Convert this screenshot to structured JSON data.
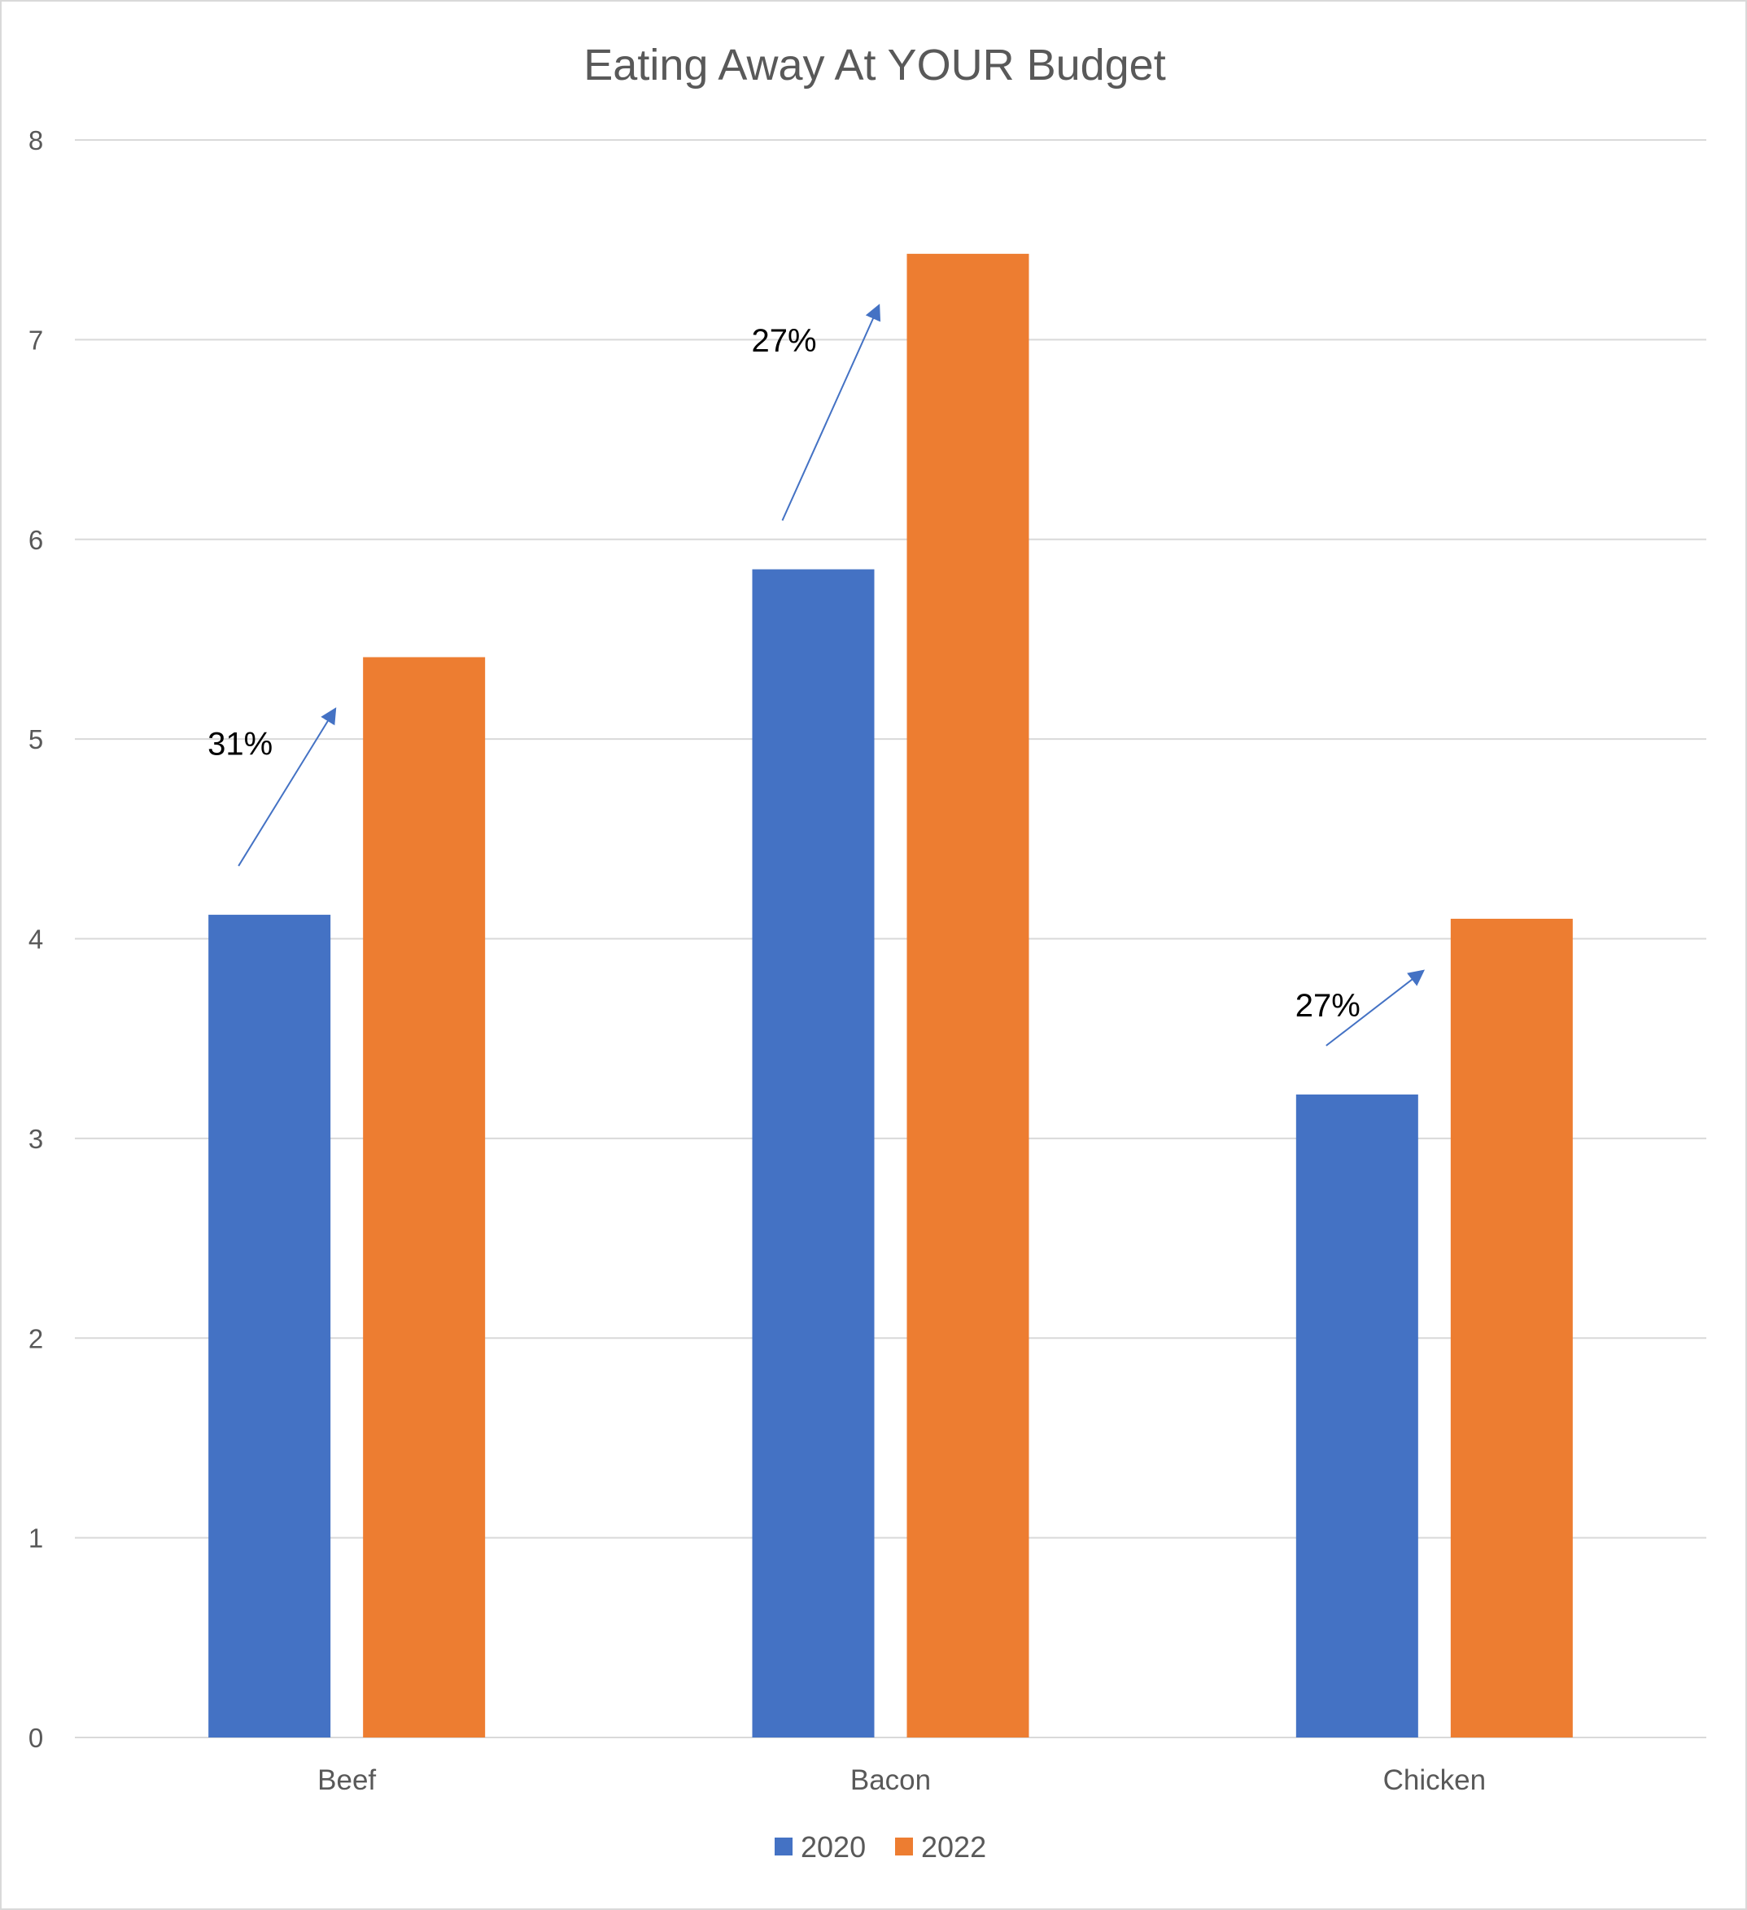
{
  "chart_data": {
    "type": "bar",
    "title": "Eating Away At YOUR Budget",
    "xlabel": "",
    "ylabel": "",
    "categories": [
      "Beef",
      "Bacon",
      "Chicken"
    ],
    "series": [
      {
        "name": "2020",
        "values": [
          4.12,
          5.85,
          3.22
        ],
        "color": "#4472C4"
      },
      {
        "name": "2022",
        "values": [
          5.41,
          7.43,
          4.1
        ],
        "color": "#ED7D31"
      }
    ],
    "ylim": [
      0,
      8
    ],
    "yticks": [
      0,
      1,
      2,
      3,
      4,
      5,
      6,
      7,
      8
    ],
    "grid": true,
    "gridline_color": "#d9d9d9",
    "legend_position": "bottom",
    "annotations": [
      {
        "category": "Beef",
        "text": "31%",
        "arrow_color": "#4472C4"
      },
      {
        "category": "Bacon",
        "text": "27%",
        "arrow_color": "#4472C4"
      },
      {
        "category": "Chicken",
        "text": "27%",
        "arrow_color": "#4472C4"
      }
    ]
  }
}
